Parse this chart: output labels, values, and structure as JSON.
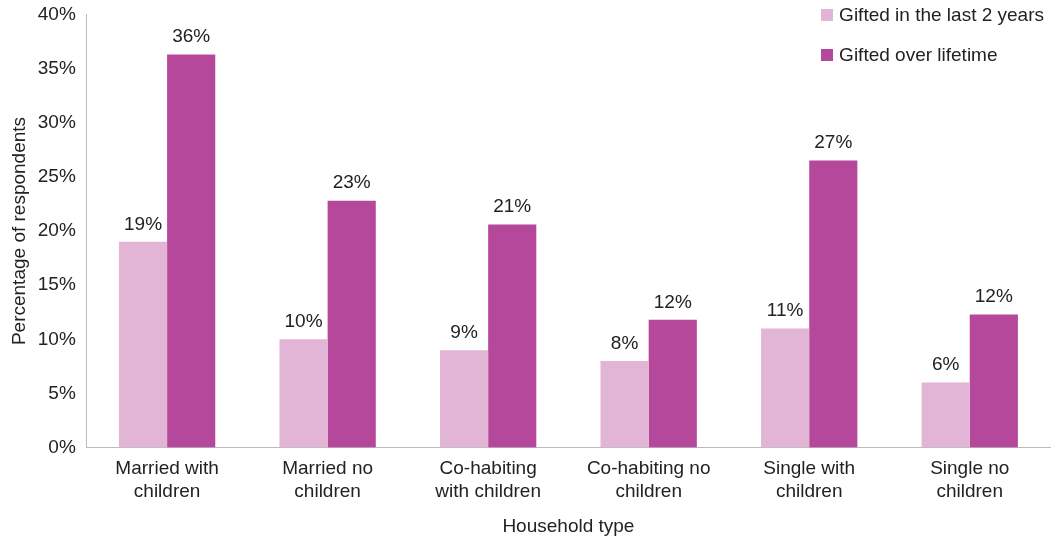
{
  "chart_data": {
    "type": "bar",
    "xlabel": "Household type",
    "ylabel": "Percentage of respondents",
    "categories": [
      "Married with children",
      "Married no children",
      "Co-habiting with children",
      "Co-habiting no children",
      "Single with children",
      "Single no children"
    ],
    "series": [
      {
        "name": "Gifted in the last 2 years",
        "color": "#e2b4d6",
        "values": [
          19,
          10,
          9,
          8,
          11,
          6
        ],
        "value_labels": [
          "19%",
          "10%",
          "9%",
          "8%",
          "11%",
          "6%"
        ]
      },
      {
        "name": "Gifted over lifetime",
        "color": "#b5489a",
        "values": [
          36.3,
          22.8,
          20.6,
          11.8,
          26.5,
          12.3
        ],
        "value_labels": [
          "36%",
          "23%",
          "21%",
          "12%",
          "27%",
          "12%"
        ]
      }
    ],
    "ylim": [
      0,
      40
    ],
    "yticks": [
      {
        "value": 0,
        "label": "0%"
      },
      {
        "value": 5,
        "label": "5%"
      },
      {
        "value": 10,
        "label": "10%"
      },
      {
        "value": 15,
        "label": "15%"
      },
      {
        "value": 20,
        "label": "20%"
      },
      {
        "value": 25,
        "label": "25%"
      },
      {
        "value": 30,
        "label": "30%"
      },
      {
        "value": 35,
        "label": "35%"
      },
      {
        "value": 40,
        "label": "40%"
      }
    ],
    "grid": false,
    "legend": "top right"
  }
}
